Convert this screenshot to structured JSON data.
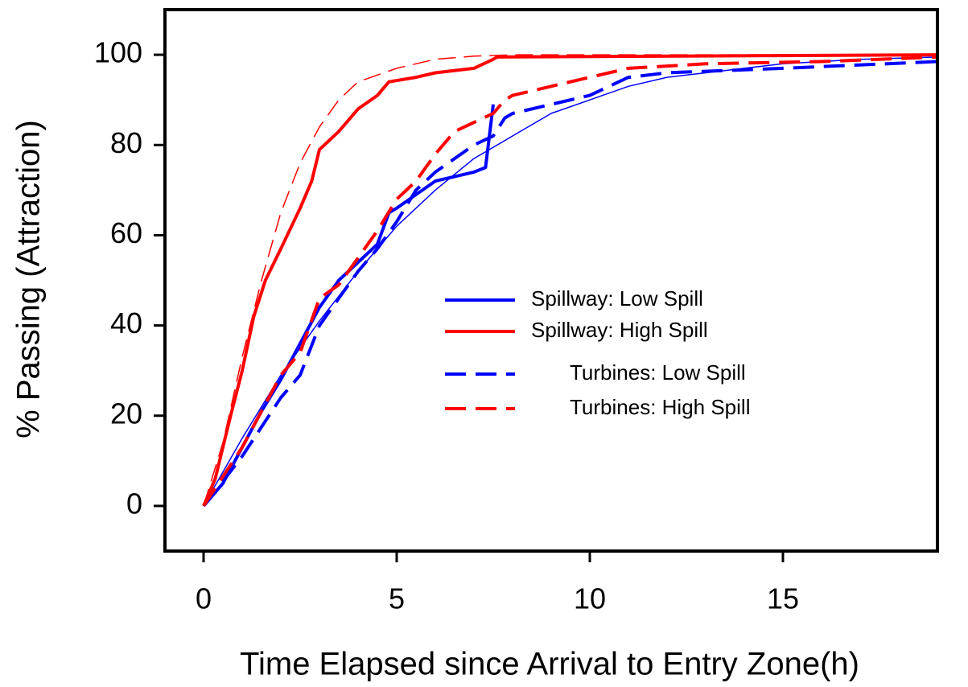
{
  "chart_data": {
    "type": "line",
    "xlabel": "Time Elapsed since Arrival to Entry Zone(h)",
    "ylabel": "% Passing (Attraction)",
    "xlim": [
      -1,
      19
    ],
    "ylim": [
      -10,
      110
    ],
    "xticks": [
      0,
      5,
      10,
      15
    ],
    "yticks": [
      0,
      20,
      40,
      60,
      80,
      100
    ],
    "series": [
      {
        "name": "Spillway: Low Spill",
        "color": "#0000ff",
        "dash": "solid",
        "x": [
          0,
          0.5,
          1,
          1.5,
          2,
          2.5,
          3,
          3.5,
          4,
          4.5,
          4.8,
          5,
          5.5,
          6,
          7,
          7.3,
          7.5
        ],
        "values": [
          0,
          5,
          13,
          21,
          28,
          36,
          44,
          50,
          54,
          58,
          65,
          66,
          69,
          72,
          74,
          75,
          89
        ]
      },
      {
        "name": "Spillway: High Spill",
        "color": "#ff0000",
        "dash": "solid",
        "x": [
          0,
          0.3,
          0.7,
          1,
          1.3,
          1.6,
          2,
          2.5,
          2.8,
          3,
          3.5,
          4,
          4.5,
          4.8,
          5.5,
          6,
          7,
          7.5,
          7.6,
          19
        ],
        "values": [
          0,
          6,
          20,
          30,
          42,
          50,
          57,
          66,
          72,
          79,
          83,
          88,
          91,
          94,
          95,
          96,
          97,
          99,
          99.5,
          100
        ]
      },
      {
        "name": "Turbines: Low Spill",
        "color": "#0000ff",
        "dash": "dashed",
        "x": [
          0,
          1,
          2,
          2.5,
          3,
          3.5,
          4,
          4.5,
          5,
          5.5,
          6,
          7,
          7.5,
          7.8,
          8,
          9,
          10,
          11,
          12,
          15,
          19
        ],
        "values": [
          0,
          11,
          24,
          29,
          40,
          46,
          52,
          57,
          63,
          70,
          74,
          80,
          82,
          86,
          87,
          89,
          91,
          95,
          96,
          97,
          98.5
        ]
      },
      {
        "name": "Turbines: High Spill",
        "color": "#ff0000",
        "dash": "dashed",
        "x": [
          0,
          1,
          2,
          2.5,
          3,
          3.5,
          4,
          4.5,
          5,
          5.5,
          6,
          6.5,
          7,
          7.5,
          7.8,
          8,
          9,
          10,
          11,
          13,
          16,
          19
        ],
        "values": [
          0,
          13,
          29,
          34,
          46,
          49,
          55,
          61,
          68,
          72,
          78,
          83,
          85,
          87,
          90,
          91,
          93,
          95,
          97,
          98,
          98.5,
          99.5
        ]
      }
    ],
    "fits": [
      {
        "color": "#0000ff",
        "dash": "solid",
        "x": [
          0,
          1,
          2,
          3,
          4,
          5,
          6,
          7,
          8,
          9,
          10,
          11,
          12,
          13,
          14,
          15,
          17,
          19
        ],
        "values": [
          0,
          15,
          29,
          41,
          52,
          62,
          70,
          77,
          82,
          87,
          90,
          93,
          95,
          96,
          97,
          98,
          99,
          99.5
        ]
      },
      {
        "color": "#ff0000",
        "dash": "dashed",
        "x": [
          0,
          0.5,
          1,
          1.5,
          2,
          2.5,
          3,
          3.5,
          4,
          5,
          6,
          7,
          8,
          19
        ],
        "values": [
          0,
          14,
          33,
          50,
          65,
          76,
          84,
          90,
          94,
          97,
          99,
          99.7,
          100,
          100
        ]
      }
    ]
  }
}
